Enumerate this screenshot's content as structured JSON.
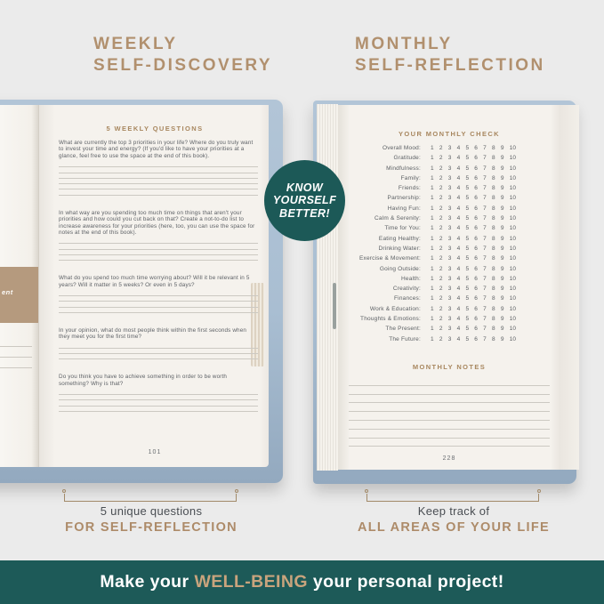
{
  "colors": {
    "background": "#ebebeb",
    "gold_heading": "#b1906e",
    "cover_blue": "#a9bed2",
    "page_cream": "#f5f2ed",
    "badge_teal": "#1c5957",
    "footer_teal": "#1d5a58",
    "footer_gold": "#c9a47d",
    "ink": "#5d6166"
  },
  "headings": {
    "left": {
      "line1": "WEEKLY",
      "line2": "SELF-DISCOVERY"
    },
    "right": {
      "line1": "MONTHLY",
      "line2": "SELF-REFLECTION"
    }
  },
  "badge": {
    "lines": [
      "KNOW",
      "YOURSELF",
      "BETTER!"
    ]
  },
  "left_book": {
    "page_title": "5 WEEKLY QUESTIONS",
    "questions": [
      {
        "text": "What are currently the top 3 priorities in your life? Where do you truly want to invest your time and energy? (If you'd like to have your priorities at a glance, feel free to use the space at the end of this book).",
        "rule_lines": 6
      },
      {
        "text": "In what way are you spending too much time on things that aren't your priorities and how could you cut back on that? Create a not-to-do list to increase awareness for your priorities (here, too, you can use the space for notes at the end of this book).",
        "rule_lines": 4
      },
      {
        "text": "What do you spend too much time worrying about? Will it be relevant in 5 years? Will it matter in 5 weeks? Or even in 5 days?",
        "rule_lines": 4
      },
      {
        "text": "In your opinion, what do most people think within the first seconds when they meet you for the first time?",
        "rule_lines": 3
      },
      {
        "text": "Do you think you have to achieve something in order to be worth something? Why is that?",
        "rule_lines": 4
      }
    ],
    "page_number": "101",
    "left_page_fragment": "ent"
  },
  "right_book": {
    "page_title": "YOUR MONTHLY CHECK",
    "scale": [
      "1",
      "2",
      "3",
      "4",
      "5",
      "6",
      "7",
      "8",
      "9",
      "10"
    ],
    "categories": [
      "Overall Mood:",
      "Gratitude:",
      "Mindfulness:",
      "Family:",
      "Friends:",
      "Partnership:",
      "Having Fun:",
      "Calm & Serenity:",
      "Time for You:",
      "Eating Healthy:",
      "Drinking Water:",
      "Exercise & Movement:",
      "Going Outside:",
      "Health:",
      "Creativity:",
      "Finances:",
      "Work & Education:",
      "Thoughts & Emotions:",
      "The Present:",
      "The Future:"
    ],
    "notes_title": "MONTHLY NOTES",
    "notes_line_count": 8,
    "page_number": "228"
  },
  "captions": {
    "left": {
      "line1": "5 unique questions",
      "line2": "FOR SELF-REFLECTION"
    },
    "right": {
      "line1": "Keep track of",
      "line2": "ALL AREAS OF YOUR LIFE"
    }
  },
  "footer": {
    "prefix": "Make your",
    "highlight": "WELL-BEING",
    "suffix": "your personal project!"
  }
}
